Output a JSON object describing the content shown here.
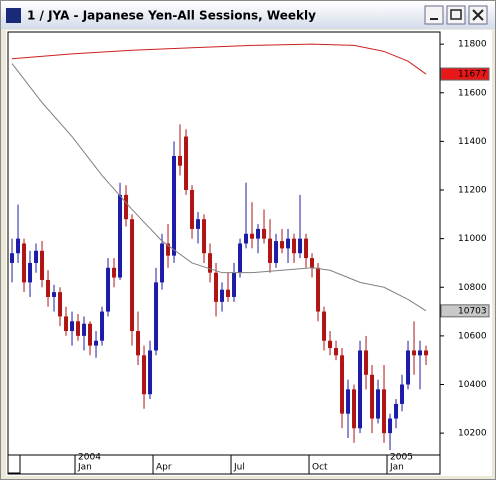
{
  "chart_data": {
    "type": "candlestick",
    "title": "1 / JYA - Japanese Yen-All Sessions, Weekly",
    "up_color": "#1c1ca8",
    "down_color": "#b01515",
    "ylim": [
      10110,
      11850
    ],
    "yticks": [
      10200,
      10400,
      10600,
      10800,
      11000,
      11200,
      11400,
      11600,
      11800
    ],
    "xlim": [
      -0.67,
      71.33
    ],
    "xticks": [
      {
        "value": 10.5,
        "label": "Jan"
      },
      {
        "value": 23.5,
        "label": "Apr"
      },
      {
        "value": 36.5,
        "label": "Jul"
      },
      {
        "value": 49.5,
        "label": "Oct"
      },
      {
        "value": 62.5,
        "label": "Jan"
      }
    ],
    "year_labels": [
      {
        "value": 10.5,
        "label": "2004"
      },
      {
        "value": 62.5,
        "label": "2005"
      }
    ],
    "open": [
      10900,
      10940,
      10980,
      10820,
      10900,
      10950,
      10830,
      10760,
      10780,
      10680,
      10620,
      10660,
      10600,
      10650,
      10560,
      10580,
      10700,
      10880,
      10840,
      11180,
      11080,
      10620,
      10520,
      10360,
      10540,
      10820,
      10980,
      10930,
      11340,
      11420,
      11200,
      11040,
      11080,
      10940,
      10860,
      10740,
      10790,
      10760,
      10860,
      10980,
      11020,
      11000,
      11040,
      11000,
      10900,
      10990,
      10960,
      11000,
      10940,
      11000,
      10920,
      10880,
      10700,
      10580,
      10550,
      10520,
      10280,
      10380,
      10220,
      10540,
      10440,
      10260,
      10380,
      10200,
      10260,
      10320,
      10400,
      10540,
      10520,
      10540
    ],
    "high": [
      11000,
      11140,
      11000,
      10950,
      10980,
      10990,
      10870,
      10810,
      10800,
      10720,
      10700,
      10690,
      10680,
      10660,
      10620,
      10720,
      10920,
      10920,
      11230,
      11220,
      11100,
      10700,
      10560,
      10580,
      10880,
      11020,
      11060,
      11400,
      11470,
      11450,
      11220,
      11110,
      11100,
      10980,
      10900,
      10820,
      10860,
      10900,
      11000,
      11230,
      11150,
      11060,
      11120,
      11080,
      11020,
      11040,
      11040,
      11020,
      11180,
      11020,
      10940,
      10900,
      10720,
      10620,
      10580,
      10550,
      10420,
      10400,
      10580,
      10600,
      10480,
      10420,
      10480,
      10280,
      10340,
      10440,
      10580,
      10660,
      10580,
      10560
    ],
    "low": [
      10820,
      10900,
      10780,
      10760,
      10860,
      10800,
      10720,
      10700,
      10640,
      10600,
      10560,
      10580,
      10540,
      10520,
      10510,
      10560,
      10680,
      10800,
      10830,
      11050,
      10560,
      10480,
      10300,
      10340,
      10520,
      10790,
      10880,
      10900,
      11260,
      11180,
      11000,
      10980,
      10900,
      10820,
      10680,
      10700,
      10740,
      10740,
      10840,
      10960,
      10960,
      10940,
      10980,
      10860,
      10880,
      10940,
      10900,
      10900,
      10920,
      10880,
      10840,
      10660,
      10540,
      10520,
      10500,
      10220,
      10180,
      10160,
      10200,
      10380,
      10200,
      10240,
      10160,
      10130,
      10220,
      10290,
      10380,
      10440,
      10380,
      10480
    ],
    "close": [
      10940,
      11000,
      10820,
      10900,
      10950,
      10830,
      10760,
      10780,
      10680,
      10620,
      10660,
      10600,
      10650,
      10560,
      10580,
      10700,
      10880,
      10840,
      11180,
      11080,
      10620,
      10520,
      10360,
      10540,
      10820,
      10980,
      10930,
      11340,
      11300,
      11200,
      11040,
      11080,
      10940,
      10860,
      10740,
      10790,
      10760,
      10860,
      10980,
      11020,
      11000,
      11040,
      11000,
      10900,
      10990,
      10960,
      11000,
      10940,
      11000,
      10920,
      10880,
      10700,
      10580,
      10550,
      10520,
      10280,
      10380,
      10220,
      10540,
      10440,
      10260,
      10380,
      10200,
      10260,
      10320,
      10400,
      10540,
      10520,
      10540,
      10520
    ],
    "series": [
      {
        "color": "#cc2020",
        "label_bg": "#e81818",
        "label_fg": "#ffffff",
        "x": [
          0,
          10,
          20,
          30,
          40,
          50,
          57,
          62,
          66,
          69
        ],
        "values": [
          11740,
          11760,
          11775,
          11785,
          11795,
          11800,
          11795,
          11770,
          11730,
          11677
        ]
      },
      {
        "color": "#808080",
        "label_bg": "#c8c8c8",
        "label_fg": "#000000",
        "x": [
          0,
          5,
          10,
          15,
          20,
          25,
          30,
          35,
          40,
          45,
          50,
          53,
          58,
          62,
          66,
          69
        ],
        "values": [
          11720,
          11560,
          11420,
          11260,
          11120,
          10990,
          10900,
          10860,
          10860,
          10870,
          10880,
          10870,
          10820,
          10800,
          10750,
          10703
        ]
      }
    ]
  }
}
